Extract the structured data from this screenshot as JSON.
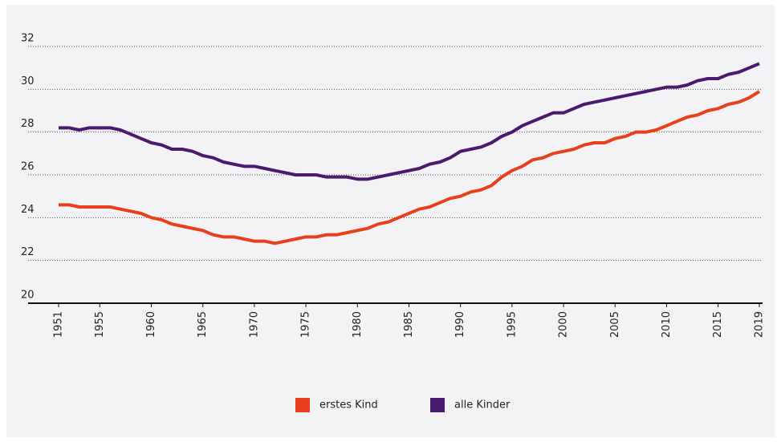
{
  "chart_data": {
    "type": "line",
    "x": [
      1951,
      1952,
      1953,
      1954,
      1955,
      1956,
      1957,
      1958,
      1959,
      1960,
      1961,
      1962,
      1963,
      1964,
      1965,
      1966,
      1967,
      1968,
      1969,
      1970,
      1971,
      1972,
      1973,
      1974,
      1975,
      1976,
      1977,
      1978,
      1979,
      1980,
      1981,
      1982,
      1983,
      1984,
      1985,
      1986,
      1987,
      1988,
      1989,
      1990,
      1991,
      1992,
      1993,
      1994,
      1995,
      1996,
      1997,
      1998,
      1999,
      2000,
      2001,
      2002,
      2003,
      2004,
      2005,
      2006,
      2007,
      2008,
      2009,
      2010,
      2011,
      2012,
      2013,
      2014,
      2015,
      2016,
      2017,
      2018,
      2019
    ],
    "series": [
      {
        "name": "erstes Kind",
        "color": "#e8401c",
        "values": [
          24.6,
          24.6,
          24.5,
          24.5,
          24.5,
          24.5,
          24.4,
          24.3,
          24.2,
          24.0,
          23.9,
          23.7,
          23.6,
          23.5,
          23.4,
          23.2,
          23.1,
          23.1,
          23.0,
          22.9,
          22.9,
          22.8,
          22.9,
          23.0,
          23.1,
          23.1,
          23.2,
          23.2,
          23.3,
          23.4,
          23.5,
          23.7,
          23.8,
          24.0,
          24.2,
          24.4,
          24.5,
          24.7,
          24.9,
          25.0,
          25.2,
          25.3,
          25.5,
          25.9,
          26.2,
          26.4,
          26.7,
          26.8,
          27.0,
          27.1,
          27.2,
          27.4,
          27.5,
          27.5,
          27.7,
          27.8,
          28.0,
          28.0,
          28.1,
          28.3,
          28.5,
          28.7,
          28.8,
          29.0,
          29.1,
          29.3,
          29.4,
          29.6,
          29.9
        ]
      },
      {
        "name": "alle Kinder",
        "color": "#4a1a6e",
        "values": [
          28.2,
          28.2,
          28.1,
          28.2,
          28.2,
          28.2,
          28.1,
          27.9,
          27.7,
          27.5,
          27.4,
          27.2,
          27.2,
          27.1,
          26.9,
          26.8,
          26.6,
          26.5,
          26.4,
          26.4,
          26.3,
          26.2,
          26.1,
          26.0,
          26.0,
          26.0,
          25.9,
          25.9,
          25.9,
          25.8,
          25.8,
          25.9,
          26.0,
          26.1,
          26.2,
          26.3,
          26.5,
          26.6,
          26.8,
          27.1,
          27.2,
          27.3,
          27.5,
          27.8,
          28.0,
          28.3,
          28.5,
          28.7,
          28.9,
          28.9,
          29.1,
          29.3,
          29.4,
          29.5,
          29.6,
          29.7,
          29.8,
          29.9,
          30.0,
          30.1,
          30.1,
          30.2,
          30.4,
          30.5,
          30.5,
          30.7,
          30.8,
          31.0,
          31.2
        ]
      }
    ],
    "xlim": [
      1951,
      2019
    ],
    "xticks": [
      1951,
      1955,
      1960,
      1965,
      1970,
      1975,
      1980,
      1985,
      1990,
      1995,
      2000,
      2005,
      2010,
      2015,
      2019
    ],
    "ylim": [
      20,
      32
    ],
    "yticks": [
      20,
      22,
      24,
      26,
      28,
      30,
      32
    ],
    "grid": true,
    "legend": "bottom"
  }
}
